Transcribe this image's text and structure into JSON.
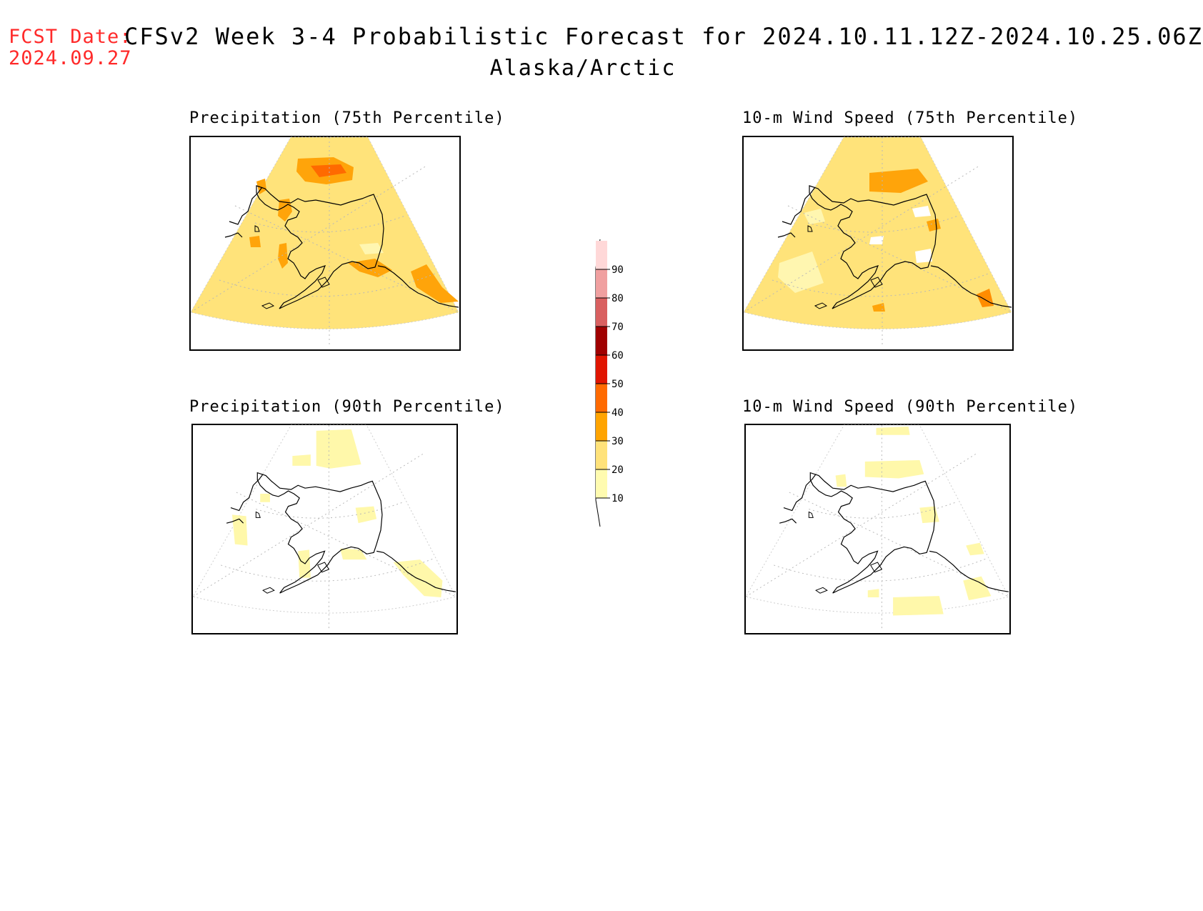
{
  "header": {
    "fcst_label": "FCST Date:",
    "fcst_date": "2024.09.27",
    "title": "CFSv2 Week 3-4 Probabilistic Forecast for 2024.10.11.12Z-2024.10.25.06Z",
    "region": "Alaska/Arctic"
  },
  "panels": [
    {
      "title": "Precipitation (75th Percentile)",
      "base_color": "#ffe37a",
      "hot_color": "#ffa40a",
      "max_color": "#ff6a00"
    },
    {
      "title": "10-m Wind Speed (75th Percentile)",
      "base_color": "#ffe37a",
      "hot_color": "#ffa40a",
      "max_color": "#ff8c00"
    },
    {
      "title": "Precipitation (90th Percentile)",
      "base_color": "#ffffff",
      "hot_color": "#fff8aa",
      "max_color": "#ffef99"
    },
    {
      "title": "10-m Wind Speed (90th Percentile)",
      "base_color": "#ffffff",
      "hot_color": "#fff8aa",
      "max_color": "#fff8aa"
    }
  ],
  "colorbar": {
    "levels": [
      "10",
      "20",
      "30",
      "40",
      "50",
      "60",
      "70",
      "80",
      "90"
    ],
    "colors": [
      "#fffbb0",
      "#ffe27a",
      "#ffa400",
      "#ff6a00",
      "#e01500",
      "#a00000",
      "#d96060",
      "#f0a0a0",
      "#ffd8d8"
    ]
  }
}
